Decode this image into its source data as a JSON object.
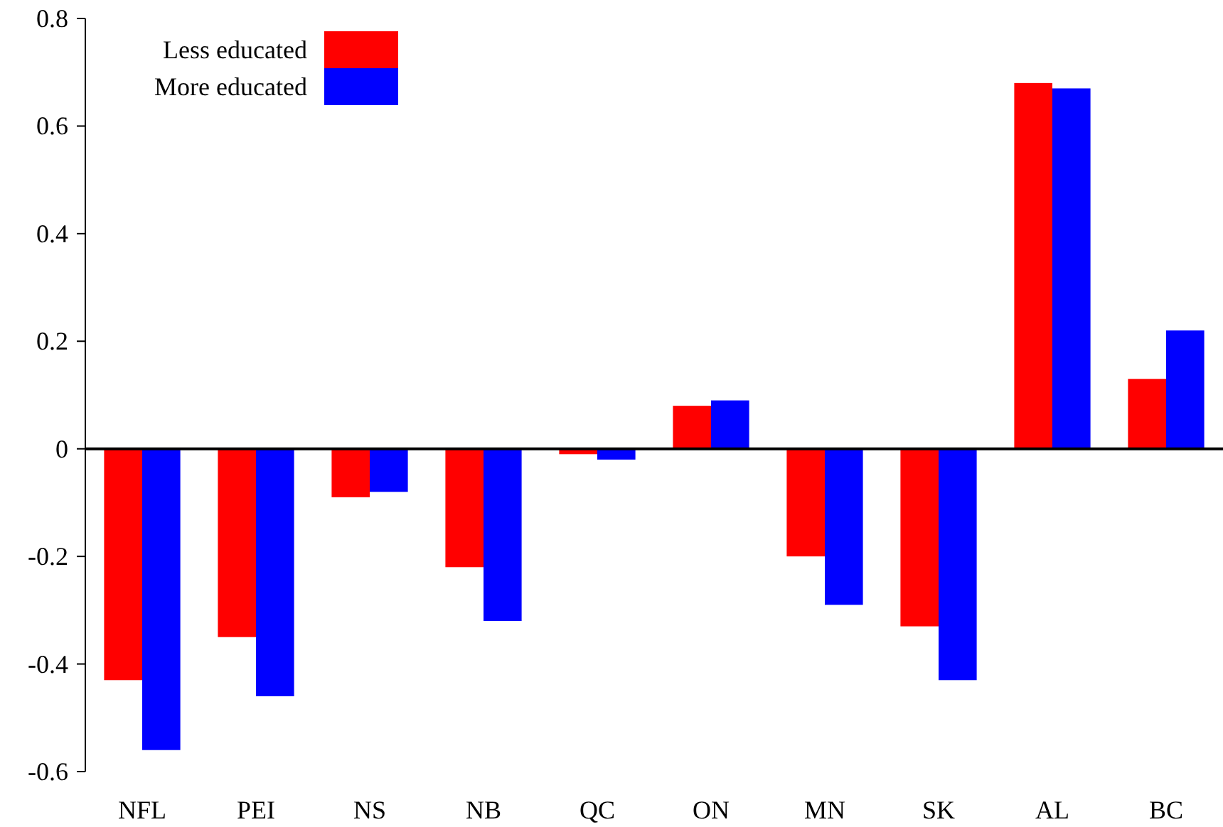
{
  "chart_data": {
    "type": "bar",
    "categories": [
      "NFL",
      "PEI",
      "NS",
      "NB",
      "QC",
      "ON",
      "MN",
      "SK",
      "AL",
      "BC"
    ],
    "series": [
      {
        "name": "Less educated",
        "color": "#ff0000",
        "values": [
          -0.43,
          -0.35,
          -0.09,
          -0.22,
          -0.01,
          0.08,
          -0.2,
          -0.33,
          0.68,
          0.13
        ]
      },
      {
        "name": "More educated",
        "color": "#0000ff",
        "values": [
          -0.56,
          -0.46,
          -0.08,
          -0.32,
          -0.02,
          0.09,
          -0.29,
          -0.43,
          0.67,
          0.22
        ]
      }
    ],
    "ylim": [
      -0.6,
      0.8
    ],
    "yticks": [
      -0.6,
      -0.4,
      -0.2,
      0,
      0.2,
      0.4,
      0.6,
      0.8
    ],
    "ref_lines": [
      {
        "axis": "y",
        "value": 0,
        "color": "#000000"
      }
    ],
    "legend": "top left"
  }
}
